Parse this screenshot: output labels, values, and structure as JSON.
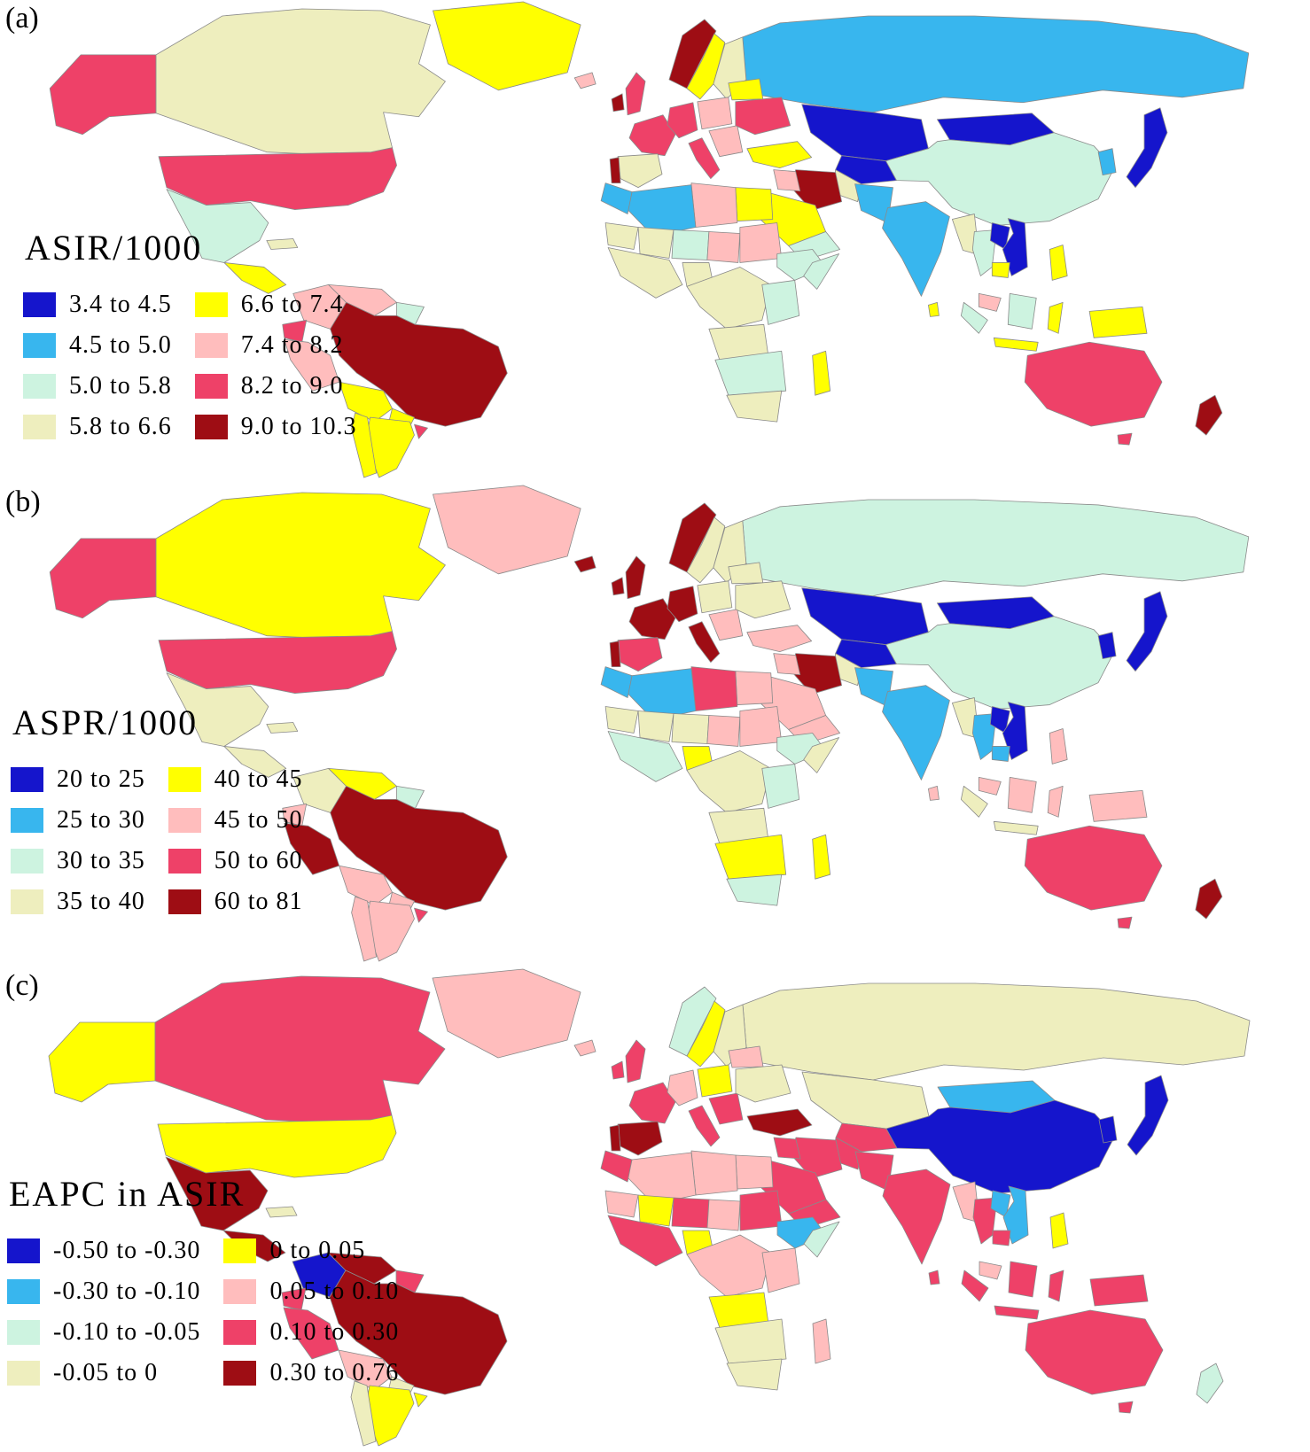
{
  "figure": {
    "palette": {
      "navy": "#1515cc",
      "sky": "#38b6ee",
      "mint": "#cdf3e0",
      "khaki": "#eeeebe",
      "yellow": "#ffff00",
      "pink": "#ffbdbd",
      "rose": "#ee4168",
      "maroon": "#9e0d14"
    },
    "map_stroke": "#8a8a8a",
    "panels": [
      {
        "id": "a",
        "label": "(a)",
        "legend_title": "ASIR/1000",
        "legend": [
          {
            "label": "3.4 to 4.5",
            "color": "navy"
          },
          {
            "label": "4.5 to 5.0",
            "color": "sky"
          },
          {
            "label": "5.0 to 5.8",
            "color": "mint"
          },
          {
            "label": "5.8 to 6.6",
            "color": "khaki"
          },
          {
            "label": "6.6 to 7.4",
            "color": "yellow"
          },
          {
            "label": "7.4 to 8.2",
            "color": "pink"
          },
          {
            "label": "8.2 to 9.0",
            "color": "rose"
          },
          {
            "label": "9.0 to 10.3",
            "color": "maroon"
          }
        ],
        "country_colors": {
          "alaska": "rose",
          "canada": "khaki",
          "greenland": "yellow",
          "usa": "rose",
          "mexico": "mint",
          "centralamerica": "yellow",
          "cuba": "khaki",
          "colombia": "pink",
          "venezuela": "pink",
          "guyana": "mint",
          "ecuador": "rose",
          "peru": "pink",
          "brazil": "maroon",
          "bolivia": "yellow",
          "paraguay": "yellow",
          "uruguay": "rose",
          "argentina": "yellow",
          "chile": "yellow",
          "iceland": "pink",
          "ireland": "maroon",
          "uk": "rose",
          "norway": "maroon",
          "sweden": "yellow",
          "finland": "khaki",
          "france": "rose",
          "spain": "khaki",
          "portugal": "maroon",
          "germany": "rose",
          "italy": "rose",
          "poland": "pink",
          "balkans": "pink",
          "belarus": "yellow",
          "ukraine": "rose",
          "turkey": "yellow",
          "russia": "sky",
          "kazakhstan": "navy",
          "centralasia": "navy",
          "mongolia": "navy",
          "china": "mint",
          "korea": "sky",
          "japan": "navy",
          "afghanistan": "khaki",
          "pakistan": "sky",
          "india": "sky",
          "srilanka": "yellow",
          "iran": "maroon",
          "iraq": "pink",
          "saudi": "yellow",
          "arabiasouth": "mint",
          "egypt": "yellow",
          "libya": "pink",
          "algeria": "sky",
          "morocco": "sky",
          "mauritania": "khaki",
          "mali": "khaki",
          "niger": "mint",
          "chad": "pink",
          "sudan": "pink",
          "ethiopia": "mint",
          "somalia": "mint",
          "westafrica": "khaki",
          "nigeria": "khaki",
          "centralafrica": "khaki",
          "eastafrica": "mint",
          "angola": "khaki",
          "southernafrica": "mint",
          "southafrica": "khaki",
          "madagascar": "yellow",
          "myanmar": "khaki",
          "thailand": "mint",
          "laos": "navy",
          "vietnam": "navy",
          "cambodia": "yellow",
          "malaysia": "pink",
          "sumatra": "mint",
          "borneo": "mint",
          "java": "yellow",
          "sulawesi": "yellow",
          "newguinea": "yellow",
          "philippines": "yellow",
          "australia": "rose",
          "tasmania": "rose",
          "newzealand": "maroon"
        }
      },
      {
        "id": "b",
        "label": "(b)",
        "legend_title": "ASPR/1000",
        "legend": [
          {
            "label": "20 to 25",
            "color": "navy"
          },
          {
            "label": "25 to 30",
            "color": "sky"
          },
          {
            "label": "30 to 35",
            "color": "mint"
          },
          {
            "label": "35 to 40",
            "color": "khaki"
          },
          {
            "label": "40 to 45",
            "color": "yellow"
          },
          {
            "label": "45 to 50",
            "color": "pink"
          },
          {
            "label": "50 to 60",
            "color": "rose"
          },
          {
            "label": "60 to 81",
            "color": "maroon"
          }
        ],
        "country_colors": {
          "alaska": "rose",
          "canada": "yellow",
          "greenland": "pink",
          "usa": "rose",
          "mexico": "khaki",
          "centralamerica": "khaki",
          "cuba": "khaki",
          "colombia": "khaki",
          "venezuela": "yellow",
          "guyana": "mint",
          "ecuador": "pink",
          "peru": "maroon",
          "brazil": "maroon",
          "bolivia": "pink",
          "paraguay": "pink",
          "uruguay": "rose",
          "argentina": "pink",
          "chile": "pink",
          "iceland": "maroon",
          "ireland": "maroon",
          "uk": "maroon",
          "norway": "maroon",
          "sweden": "khaki",
          "finland": "khaki",
          "france": "maroon",
          "spain": "rose",
          "portugal": "maroon",
          "germany": "maroon",
          "italy": "maroon",
          "poland": "khaki",
          "balkans": "pink",
          "belarus": "khaki",
          "ukraine": "khaki",
          "turkey": "pink",
          "russia": "mint",
          "kazakhstan": "navy",
          "centralasia": "navy",
          "mongolia": "navy",
          "china": "mint",
          "korea": "navy",
          "japan": "navy",
          "afghanistan": "khaki",
          "pakistan": "sky",
          "india": "sky",
          "srilanka": "pink",
          "iran": "maroon",
          "iraq": "pink",
          "saudi": "pink",
          "arabiasouth": "pink",
          "egypt": "pink",
          "libya": "rose",
          "algeria": "sky",
          "morocco": "sky",
          "mauritania": "khaki",
          "mali": "khaki",
          "niger": "khaki",
          "chad": "pink",
          "sudan": "pink",
          "ethiopia": "mint",
          "somalia": "khaki",
          "westafrica": "mint",
          "nigeria": "yellow",
          "centralafrica": "khaki",
          "eastafrica": "mint",
          "angola": "khaki",
          "southernafrica": "yellow",
          "southafrica": "mint",
          "madagascar": "yellow",
          "myanmar": "khaki",
          "thailand": "sky",
          "laos": "navy",
          "vietnam": "navy",
          "cambodia": "sky",
          "malaysia": "pink",
          "sumatra": "khaki",
          "borneo": "pink",
          "java": "khaki",
          "sulawesi": "pink",
          "newguinea": "pink",
          "philippines": "pink",
          "australia": "rose",
          "tasmania": "rose",
          "newzealand": "maroon"
        }
      },
      {
        "id": "c",
        "label": "(c)",
        "legend_title": "EAPC in ASIR",
        "legend": [
          {
            "label": "-0.50 to -0.30",
            "color": "navy"
          },
          {
            "label": "-0.30 to -0.10",
            "color": "sky"
          },
          {
            "label": "-0.10 to -0.05",
            "color": "mint"
          },
          {
            "label": "-0.05 to 0",
            "color": "khaki"
          },
          {
            "label": "0 to 0.05",
            "color": "yellow"
          },
          {
            "label": "0.05 to 0.10",
            "color": "pink"
          },
          {
            "label": "0.10 to 0.30",
            "color": "rose"
          },
          {
            "label": "0.30 to 0.76",
            "color": "maroon"
          }
        ],
        "country_colors": {
          "alaska": "yellow",
          "canada": "rose",
          "greenland": "pink",
          "usa": "yellow",
          "mexico": "maroon",
          "centralamerica": "maroon",
          "cuba": "khaki",
          "colombia": "navy",
          "venezuela": "maroon",
          "guyana": "rose",
          "ecuador": "rose",
          "peru": "rose",
          "brazil": "maroon",
          "bolivia": "pink",
          "paraguay": "khaki",
          "uruguay": "yellow",
          "argentina": "yellow",
          "chile": "khaki",
          "iceland": "pink",
          "ireland": "rose",
          "uk": "rose",
          "norway": "mint",
          "sweden": "yellow",
          "finland": "khaki",
          "france": "rose",
          "spain": "maroon",
          "portugal": "maroon",
          "germany": "pink",
          "italy": "rose",
          "poland": "yellow",
          "balkans": "rose",
          "belarus": "pink",
          "ukraine": "khaki",
          "turkey": "maroon",
          "russia": "khaki",
          "kazakhstan": "khaki",
          "centralasia": "rose",
          "mongolia": "sky",
          "china": "navy",
          "korea": "navy",
          "japan": "navy",
          "afghanistan": "rose",
          "pakistan": "rose",
          "india": "rose",
          "srilanka": "rose",
          "iran": "rose",
          "iraq": "rose",
          "saudi": "rose",
          "arabiasouth": "rose",
          "egypt": "pink",
          "libya": "pink",
          "algeria": "pink",
          "morocco": "rose",
          "mauritania": "pink",
          "mali": "yellow",
          "niger": "rose",
          "chad": "pink",
          "sudan": "rose",
          "ethiopia": "sky",
          "somalia": "mint",
          "westafrica": "rose",
          "nigeria": "yellow",
          "centralafrica": "pink",
          "eastafrica": "pink",
          "angola": "yellow",
          "southernafrica": "khaki",
          "southafrica": "khaki",
          "madagascar": "pink",
          "myanmar": "pink",
          "thailand": "rose",
          "laos": "sky",
          "vietnam": "sky",
          "cambodia": "rose",
          "malaysia": "pink",
          "sumatra": "rose",
          "borneo": "rose",
          "java": "rose",
          "sulawesi": "rose",
          "newguinea": "rose",
          "philippines": "yellow",
          "australia": "rose",
          "tasmania": "rose",
          "newzealand": "mint"
        }
      }
    ]
  },
  "chart_data": [
    {
      "type": "choropleth_map",
      "title": "ASIR/1000",
      "bins": [
        {
          "range": "3.4 to 4.5",
          "color": "#1515cc"
        },
        {
          "range": "4.5 to 5.0",
          "color": "#38b6ee"
        },
        {
          "range": "5.0 to 5.8",
          "color": "#cdf3e0"
        },
        {
          "range": "5.8 to 6.6",
          "color": "#eeeebe"
        },
        {
          "range": "6.6 to 7.4",
          "color": "#ffff00"
        },
        {
          "range": "7.4 to 8.2",
          "color": "#ffbdbd"
        },
        {
          "range": "8.2 to 9.0",
          "color": "#ee4168"
        },
        {
          "range": "9.0 to 10.3",
          "color": "#9e0d14"
        }
      ]
    },
    {
      "type": "choropleth_map",
      "title": "ASPR/1000",
      "bins": [
        {
          "range": "20 to 25",
          "color": "#1515cc"
        },
        {
          "range": "25 to 30",
          "color": "#38b6ee"
        },
        {
          "range": "30 to 35",
          "color": "#cdf3e0"
        },
        {
          "range": "35 to 40",
          "color": "#eeeebe"
        },
        {
          "range": "40 to 45",
          "color": "#ffff00"
        },
        {
          "range": "45 to 50",
          "color": "#ffbdbd"
        },
        {
          "range": "50 to 60",
          "color": "#ee4168"
        },
        {
          "range": "60 to 81",
          "color": "#9e0d14"
        }
      ]
    },
    {
      "type": "choropleth_map",
      "title": "EAPC in ASIR",
      "bins": [
        {
          "range": "-0.50 to -0.30",
          "color": "#1515cc"
        },
        {
          "range": "-0.30 to -0.10",
          "color": "#38b6ee"
        },
        {
          "range": "-0.10 to -0.05",
          "color": "#cdf3e0"
        },
        {
          "range": "-0.05 to 0",
          "color": "#eeeebe"
        },
        {
          "range": "0 to 0.05",
          "color": "#ffff00"
        },
        {
          "range": "0.05 to 0.10",
          "color": "#ffbdbd"
        },
        {
          "range": "0.10 to 0.30",
          "color": "#ee4168"
        },
        {
          "range": "0.30 to 0.76",
          "color": "#9e0d14"
        }
      ]
    }
  ]
}
